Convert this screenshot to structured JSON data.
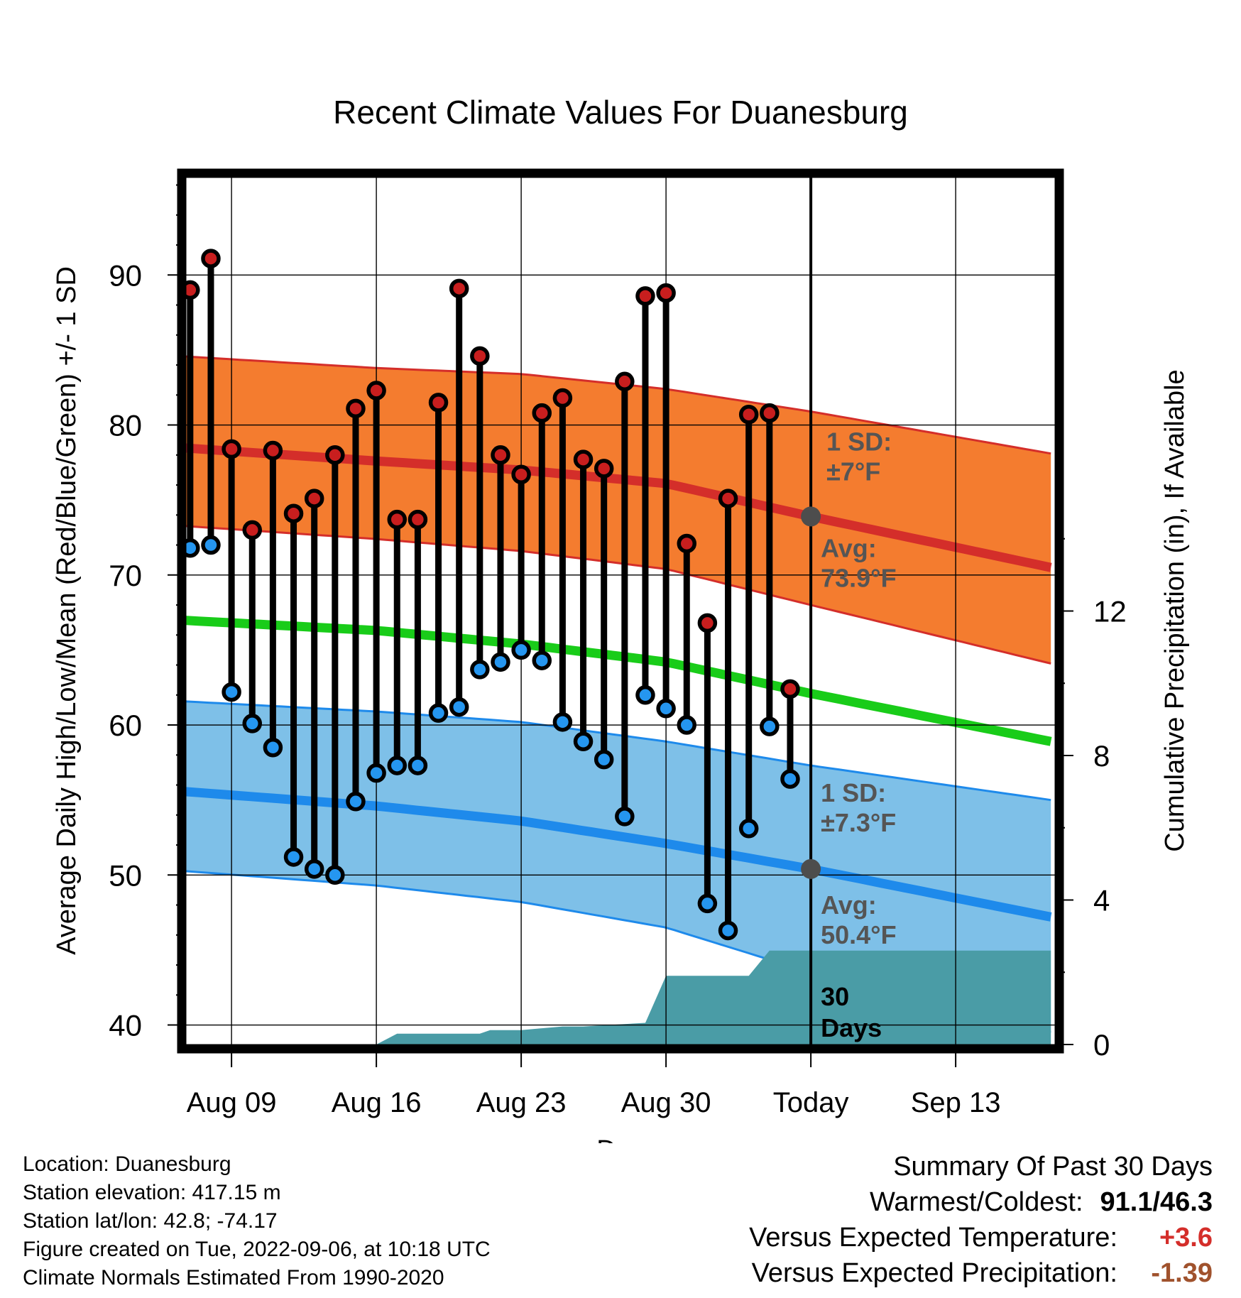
{
  "chart_data": {
    "type": "line",
    "title": "Recent Climate Values For Duanesburg",
    "xlabel": "Day",
    "ylabel_left": "Average Daily High/Low/Mean (Red/Blue/Green) +/- 1 SD",
    "ylabel_right": "Cumulative Precipitation (in), If Available",
    "ylim": [
      38.7,
      96.5
    ],
    "y2lim": [
      0,
      24
    ],
    "xlim": [
      -2.2,
      39.8
    ],
    "x_ticks": [
      {
        "day": 0,
        "label": "Aug 09"
      },
      {
        "day": 7,
        "label": "Aug 16"
      },
      {
        "day": 14,
        "label": "Aug 23"
      },
      {
        "day": 21,
        "label": "Aug 30"
      },
      {
        "day": 28,
        "label": "Today"
      },
      {
        "day": 35,
        "label": "Sep 13"
      }
    ],
    "y_ticks": [
      40,
      50,
      60,
      70,
      80,
      90
    ],
    "y2_ticks": [
      0,
      4,
      8,
      12
    ],
    "today_day": 28,
    "x_day_offset_start": "Aug 09",
    "highs": [
      89.0,
      91.1,
      78.4,
      73.0,
      78.3,
      74.1,
      75.1,
      78.0,
      81.1,
      82.3,
      73.7,
      73.7,
      81.5,
      89.1,
      84.6,
      78.0,
      76.7,
      80.8,
      81.8,
      77.7,
      77.1,
      82.9,
      88.6,
      88.8,
      72.1,
      66.8,
      75.1,
      80.7,
      80.8,
      62.4
    ],
    "lows": [
      71.8,
      72.0,
      62.2,
      60.1,
      58.5,
      51.2,
      50.4,
      50.0,
      54.9,
      56.8,
      57.3,
      57.3,
      60.8,
      61.2,
      63.7,
      64.2,
      65.0,
      64.3,
      60.2,
      58.9,
      57.7,
      53.9,
      62.0,
      61.1,
      60.0,
      48.1,
      46.3,
      53.1,
      59.9,
      56.4
    ],
    "obs_start_day": -2,
    "normal_high": {
      "x": [
        -2.6,
        7,
        14,
        21,
        28,
        39.6
      ],
      "y": [
        78.5,
        77.6,
        77.0,
        76.1,
        73.9,
        70.5
      ]
    },
    "normal_high_upper": {
      "x": [
        -2.6,
        7,
        14,
        21,
        28,
        39.6
      ],
      "y": [
        84.6,
        83.8,
        83.4,
        82.4,
        80.9,
        78.1
      ]
    },
    "normal_high_lower": {
      "x": [
        -2.6,
        7,
        14,
        21,
        28,
        39.6
      ],
      "y": [
        73.3,
        72.4,
        71.6,
        70.4,
        68.0,
        64.1
      ]
    },
    "normal_mean": {
      "x": [
        -2.6,
        7,
        14,
        21,
        28,
        39.6
      ],
      "y": [
        67.0,
        66.3,
        65.4,
        64.2,
        62.1,
        58.9
      ]
    },
    "normal_low": {
      "x": [
        -2.6,
        7,
        14,
        21,
        28,
        39.6
      ],
      "y": [
        55.6,
        54.6,
        53.6,
        52.1,
        50.4,
        47.2
      ]
    },
    "normal_low_upper": {
      "x": [
        -2.6,
        7,
        14,
        21,
        28,
        39.6
      ],
      "y": [
        61.6,
        60.9,
        60.2,
        58.9,
        57.3,
        55.0
      ]
    },
    "normal_low_lower": {
      "x": [
        -2.6,
        7,
        14,
        21,
        28,
        39.6
      ],
      "y": [
        50.3,
        49.3,
        48.2,
        46.5,
        43.5,
        39.5
      ]
    },
    "precip_cumulative": {
      "x": [
        -2.6,
        7,
        8,
        12,
        12.5,
        14,
        16,
        17,
        20,
        21,
        25,
        26,
        39.6
      ],
      "y": [
        0,
        0,
        0.3,
        0.3,
        0.4,
        0.4,
        0.5,
        0.5,
        0.6,
        1.9,
        1.9,
        2.6,
        2.6
      ]
    },
    "annotations": {
      "high_sd": "1 SD:\n±7°F",
      "high_avg": "Avg:\n73.9°F",
      "low_sd": "1 SD:\n±7.3°F",
      "low_avg": "Avg:\n50.4°F",
      "days": "30\nDays"
    },
    "colors": {
      "high_band": "#f47c2f",
      "high_line": "#d42e2a",
      "high_band_edge": "#d42e2a",
      "low_band": "#7ec0e8",
      "low_line": "#1e8aeb",
      "mean_line": "#19cc19",
      "precip": "#4a9ca6",
      "high_marker": "#c81e1e",
      "low_marker": "#2596f0",
      "annotation": "#555555"
    }
  },
  "footer": {
    "location": "Location: Duanesburg",
    "elevation": "Station elevation: 417.15 m",
    "latlon": "Station lat/lon: 42.8; -74.17",
    "created": "Figure created on Tue, 2022-09-06, at 10:18 UTC",
    "normals": "Climate Normals Estimated From 1990-2020"
  },
  "summary": {
    "title": "Summary Of Past 30 Days",
    "warmest_label": "Warmest/Coldest:",
    "warmest_value": "91.1/46.3",
    "temp_label": "Versus Expected Temperature:",
    "temp_value": "+3.6",
    "temp_color": "#d42e2a",
    "precip_label": "Versus Expected Precipitation:",
    "precip_value": "-1.39",
    "precip_color": "#a0522d"
  }
}
